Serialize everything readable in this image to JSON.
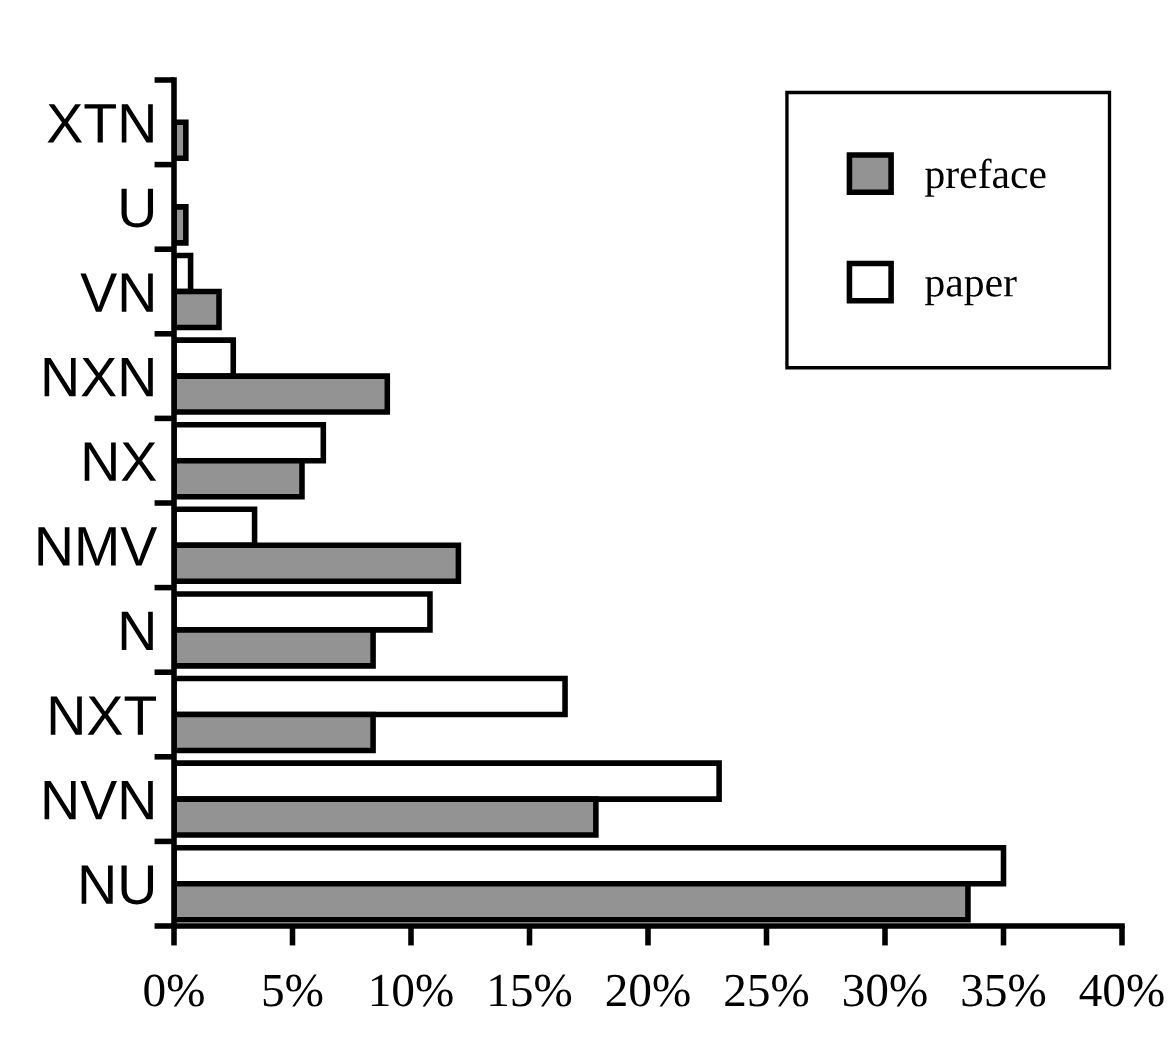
{
  "chart_data": {
    "type": "bar",
    "orientation": "horizontal",
    "categories": [
      "XTN",
      "U",
      "VN",
      "NXN",
      "NX",
      "NMV",
      "N",
      "NXT",
      "NVN",
      "NU"
    ],
    "series": [
      {
        "name": "paper",
        "color": "#ffffff",
        "values": [
          null,
          null,
          0.7,
          2.5,
          6.3,
          3.4,
          10.8,
          16.5,
          23.0,
          35.0
        ]
      },
      {
        "name": "preface",
        "color": "#939393",
        "values": [
          0.5,
          0.5,
          1.9,
          9.0,
          5.4,
          12.0,
          8.4,
          8.4,
          17.8,
          33.5
        ]
      }
    ],
    "xlim": [
      0,
      40
    ],
    "xticks": [
      {
        "value": 0,
        "label": "0%"
      },
      {
        "value": 5,
        "label": "5%"
      },
      {
        "value": 10,
        "label": "10%"
      },
      {
        "value": 15,
        "label": "15%"
      },
      {
        "value": 20,
        "label": "20%"
      },
      {
        "value": 25,
        "label": "25%"
      },
      {
        "value": 30,
        "label": "30%"
      },
      {
        "value": 35,
        "label": "35%"
      },
      {
        "value": 40,
        "label": "40%"
      }
    ],
    "legend": "top right",
    "grid": false
  }
}
